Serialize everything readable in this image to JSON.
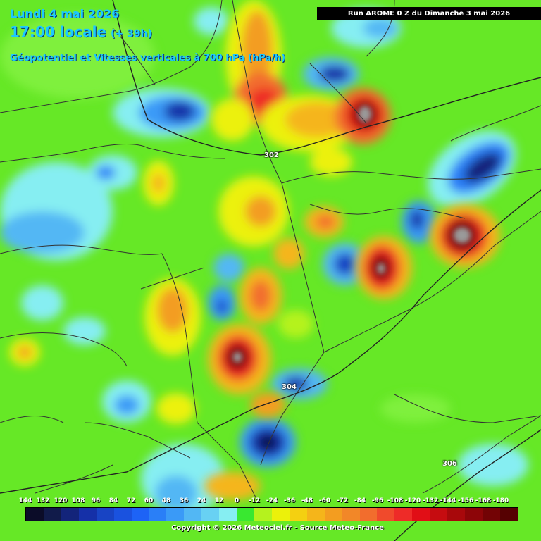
{
  "header": {
    "date": "Lundi 4 mai 2026",
    "time": "17:00 locale",
    "lead": "(+ 39h)",
    "parameter": "Géopotentiel et Vitesses verticales à 700 hPa (hPa/h)"
  },
  "run_label": "Run AROME 0 Z du Dimanche 3 mai 2026",
  "isolines": [
    {
      "label": "302"
    },
    {
      "label": "304"
    },
    {
      "label": "306"
    }
  ],
  "colorbar": {
    "labels": [
      "144",
      "132",
      "120",
      "108",
      "96",
      "84",
      "72",
      "60",
      "48",
      "36",
      "24",
      "12",
      "0",
      "-12",
      "-24",
      "-36",
      "-48",
      "-60",
      "-72",
      "-84",
      "-96",
      "-108",
      "-120",
      "-132",
      "-144",
      "-156",
      "-168",
      "-180"
    ],
    "colors": [
      "#0b0c28",
      "#111b4a",
      "#13247a",
      "#1530a8",
      "#1844c4",
      "#1a52df",
      "#1d63f6",
      "#2a7ff7",
      "#3a9af7",
      "#52b7f4",
      "#68d1f3",
      "#86eef2",
      "#39e830",
      "#b5f21e",
      "#ecf10a",
      "#f4d011",
      "#f5b51a",
      "#f39d20",
      "#f28728",
      "#f26d2d",
      "#f04a2c",
      "#ee2b28",
      "#e10e16",
      "#c60c10",
      "#a8080b",
      "#8d0508",
      "#730305",
      "#560102"
    ],
    "unit": "hPa/h"
  },
  "copyright": "Copyright © 2026 Meteociel.fr - Source Meteo-France"
}
